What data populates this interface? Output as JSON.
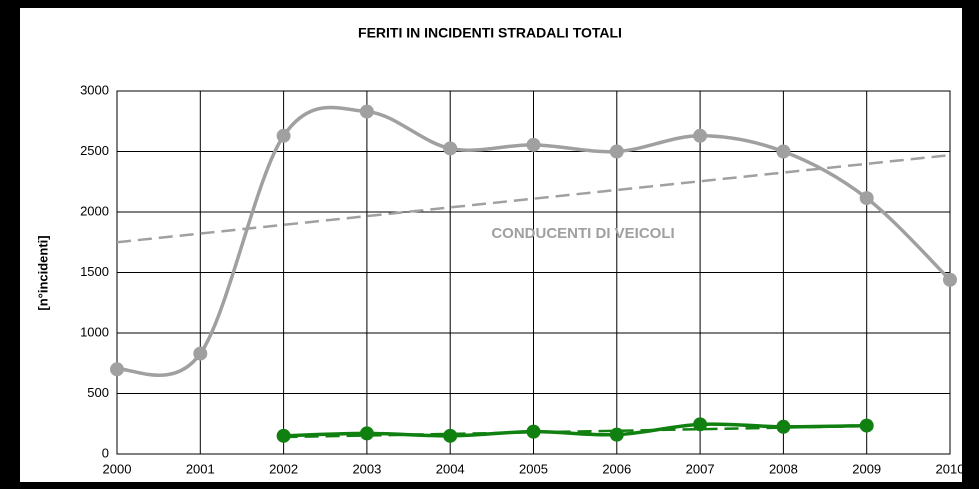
{
  "chart_data": {
    "type": "line",
    "title": "FERITI IN INCIDENTI STRADALI TOTALI",
    "y_label": "[n°incidenti]",
    "annotation": "CONDUCENTI DI VEICOLI",
    "x": [
      2000,
      2001,
      2002,
      2003,
      2004,
      2005,
      2006,
      2007,
      2008,
      2009,
      2010
    ],
    "xlim": [
      2000,
      2010
    ],
    "xticks": [
      2000,
      2001,
      2002,
      2003,
      2004,
      2005,
      2006,
      2007,
      2008,
      2009,
      2010
    ],
    "ylim": [
      0,
      3000
    ],
    "yticks": [
      0,
      500,
      1000,
      1500,
      2000,
      2500,
      3000
    ],
    "grid": true,
    "series": [
      {
        "color": "#a0a0a0",
        "dashed": true,
        "markers": false,
        "smooth": false,
        "values": [
          1750,
          1822,
          1894,
          1966,
          2038,
          2110,
          2182,
          2254,
          2326,
          2398,
          2470
        ]
      },
      {
        "color": "#a0a0a0",
        "dashed": false,
        "markers": true,
        "smooth": true,
        "values": [
          700,
          830,
          2630,
          2830,
          2525,
          2555,
          2500,
          2630,
          2500,
          2115,
          1440
        ]
      },
      {
        "color": "#108010",
        "dashed": true,
        "markers": false,
        "smooth": false,
        "values": [
          null,
          null,
          140,
          153,
          166,
          179,
          192,
          205,
          218,
          231,
          null
        ]
      },
      {
        "color": "#108010",
        "dashed": false,
        "markers": true,
        "smooth": true,
        "values": [
          null,
          null,
          150,
          170,
          150,
          185,
          160,
          245,
          225,
          235,
          null
        ]
      }
    ]
  }
}
